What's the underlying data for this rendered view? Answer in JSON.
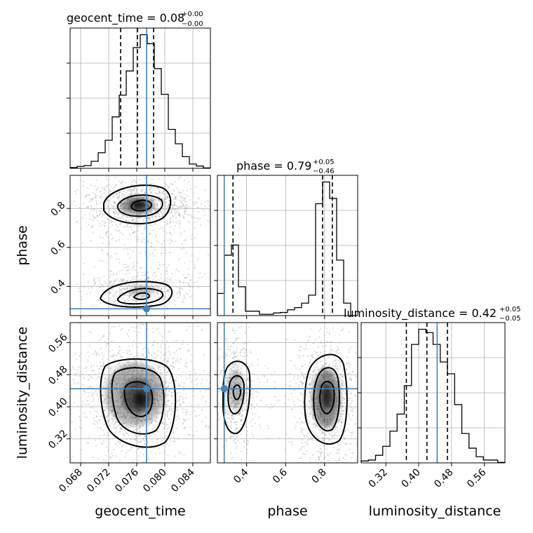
{
  "chart_data": {
    "type": "corner",
    "parameters": [
      "geocent_time",
      "phase",
      "luminosity_distance"
    ],
    "axis_labels": [
      "geocent_time",
      "phase",
      "luminosity_distance"
    ],
    "ranges": [
      [
        0.0665,
        0.0865
      ],
      [
        0.25,
        0.97
      ],
      [
        0.26,
        0.61
      ]
    ],
    "ticks": [
      [
        0.068,
        0.072,
        0.076,
        0.08,
        0.084
      ],
      [
        0.4,
        0.6,
        0.8
      ],
      [
        0.32,
        0.4,
        0.48,
        0.56
      ]
    ],
    "tick_labels": [
      [
        "0.068",
        "0.072",
        "0.076",
        "0.080",
        "0.084"
      ],
      [
        "0.4",
        "0.6",
        "0.8"
      ],
      [
        "0.32",
        "0.40",
        "0.48",
        "0.56"
      ]
    ],
    "truths": [
      0.0774,
      0.285,
      0.445
    ],
    "titles": [
      {
        "main": "geocent_time = 0.08",
        "sup": "+0.00",
        "sub": "−0.00"
      },
      {
        "main": "phase = 0.79",
        "sup": "+0.05",
        "sub": "−0.46"
      },
      {
        "main": "luminosity_distance = 0.42",
        "sup": "+0.05",
        "sub": "−0.05"
      }
    ],
    "quantiles": [
      [
        0.0737,
        0.0761,
        0.0784
      ],
      [
        0.33,
        0.79,
        0.84
      ],
      [
        0.37,
        0.42,
        0.47
      ]
    ],
    "histograms": [
      {
        "counts": [
          2,
          5,
          7,
          18,
          40,
          72,
          132,
          188,
          250,
          310,
          343,
          320,
          256,
          190,
          100,
          63,
          30,
          11,
          6,
          1
        ]
      },
      {
        "counts": [
          50,
          136,
          159,
          65,
          10,
          10,
          3,
          3,
          6,
          7,
          13,
          18,
          28,
          46,
          252,
          301,
          264,
          125,
          28,
          0
        ]
      },
      {
        "counts": [
          4,
          6,
          16,
          35,
          67,
          103,
          163,
          250,
          282,
          275,
          250,
          213,
          188,
          123,
          62,
          31,
          13,
          6,
          6,
          1
        ]
      }
    ],
    "grid": true
  }
}
